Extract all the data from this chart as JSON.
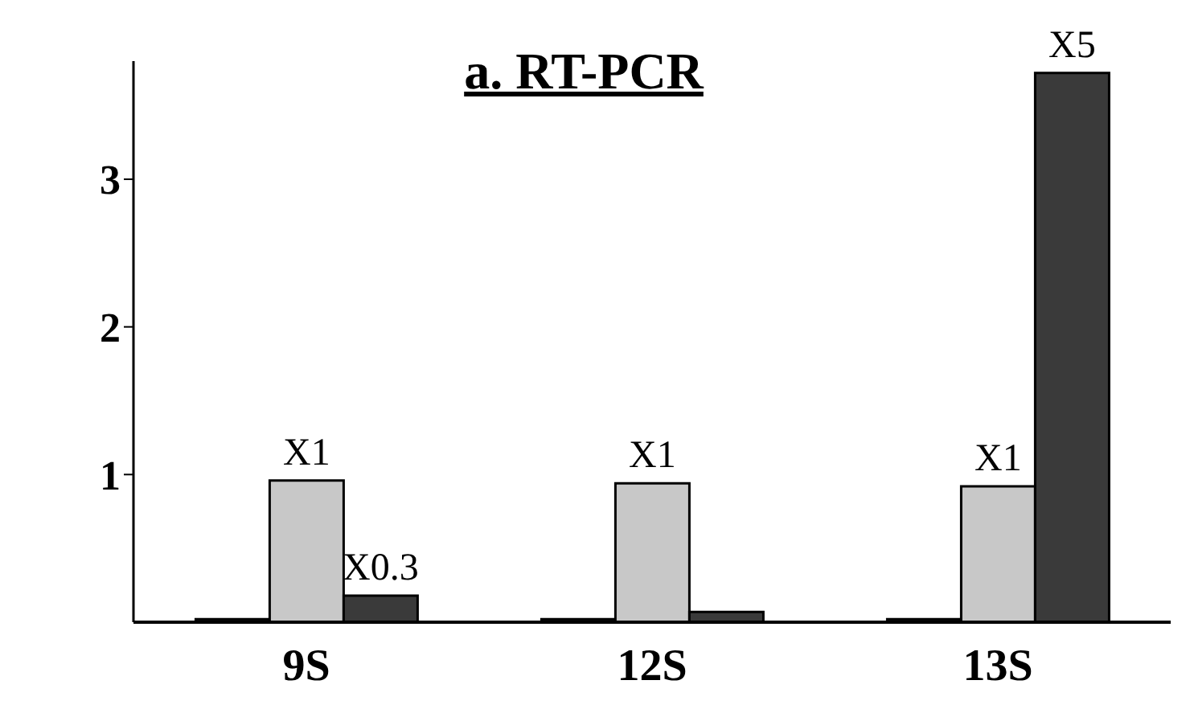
{
  "chart_data": {
    "type": "bar",
    "title": "a. RT-PCR",
    "categories": [
      "9S",
      "12S",
      "13S"
    ],
    "series": [
      {
        "color": "#1a1a1a",
        "values": [
          0.02,
          0.02,
          0.02
        ]
      },
      {
        "color": "#c8c8c8",
        "values": [
          0.96,
          0.94,
          0.92
        ],
        "value_labels": [
          "X1",
          "X1",
          "X1"
        ]
      },
      {
        "color": "#3a3a3a",
        "values": [
          0.18,
          0.07,
          3.72
        ],
        "value_labels": [
          "X0.3",
          null,
          "X5"
        ]
      }
    ],
    "ylim": [
      0,
      3.8
    ],
    "yticks": [
      1,
      2,
      3
    ],
    "grid": false,
    "legend": false
  }
}
